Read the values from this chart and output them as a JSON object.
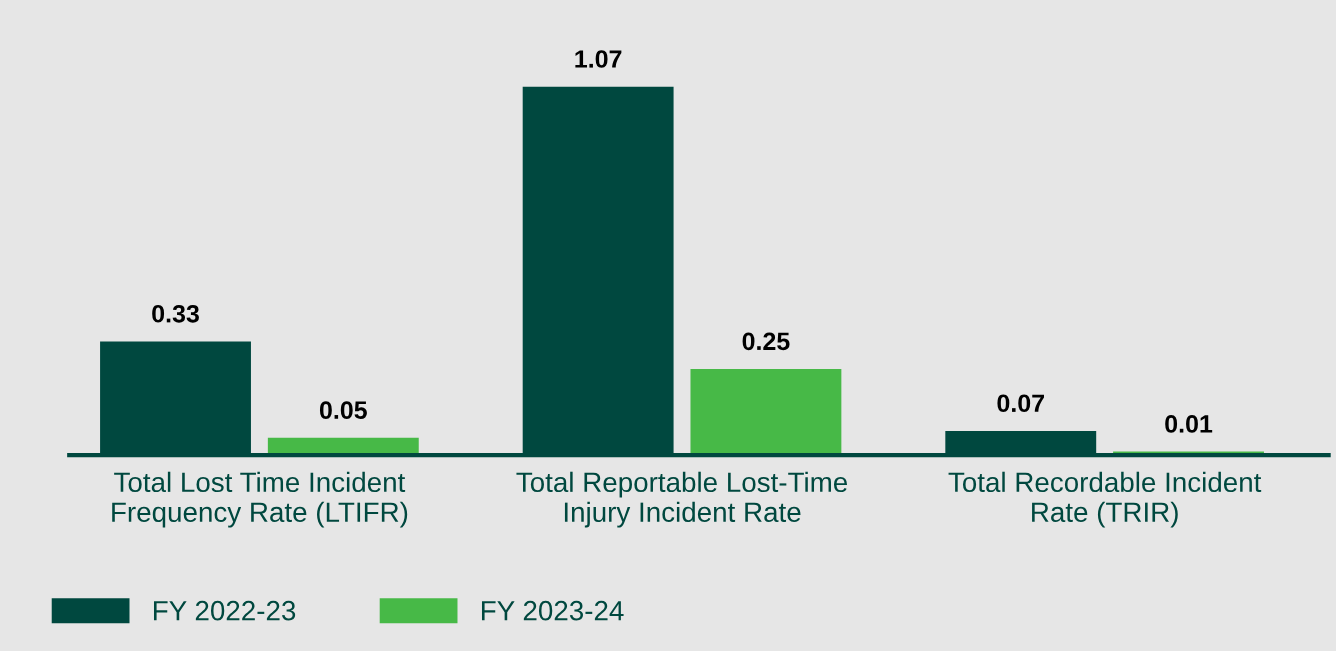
{
  "chart_data": {
    "type": "bar",
    "categories": [
      "Total Lost Time Incident\nFrequency Rate (LTIFR)",
      "Total Reportable Lost-Time\nInjury Incident Rate",
      "Total Recordable Incident\nRate (TRIR)"
    ],
    "series": [
      {
        "name": "FY 2022-23",
        "color": "#00483f",
        "values": [
          0.33,
          1.07,
          0.07
        ]
      },
      {
        "name": "FY 2023-24",
        "color": "#47b947",
        "values": [
          0.05,
          0.25,
          0.01
        ]
      }
    ],
    "data_labels": true,
    "grid": false,
    "legend": "bottom",
    "tick_labels": "x"
  }
}
